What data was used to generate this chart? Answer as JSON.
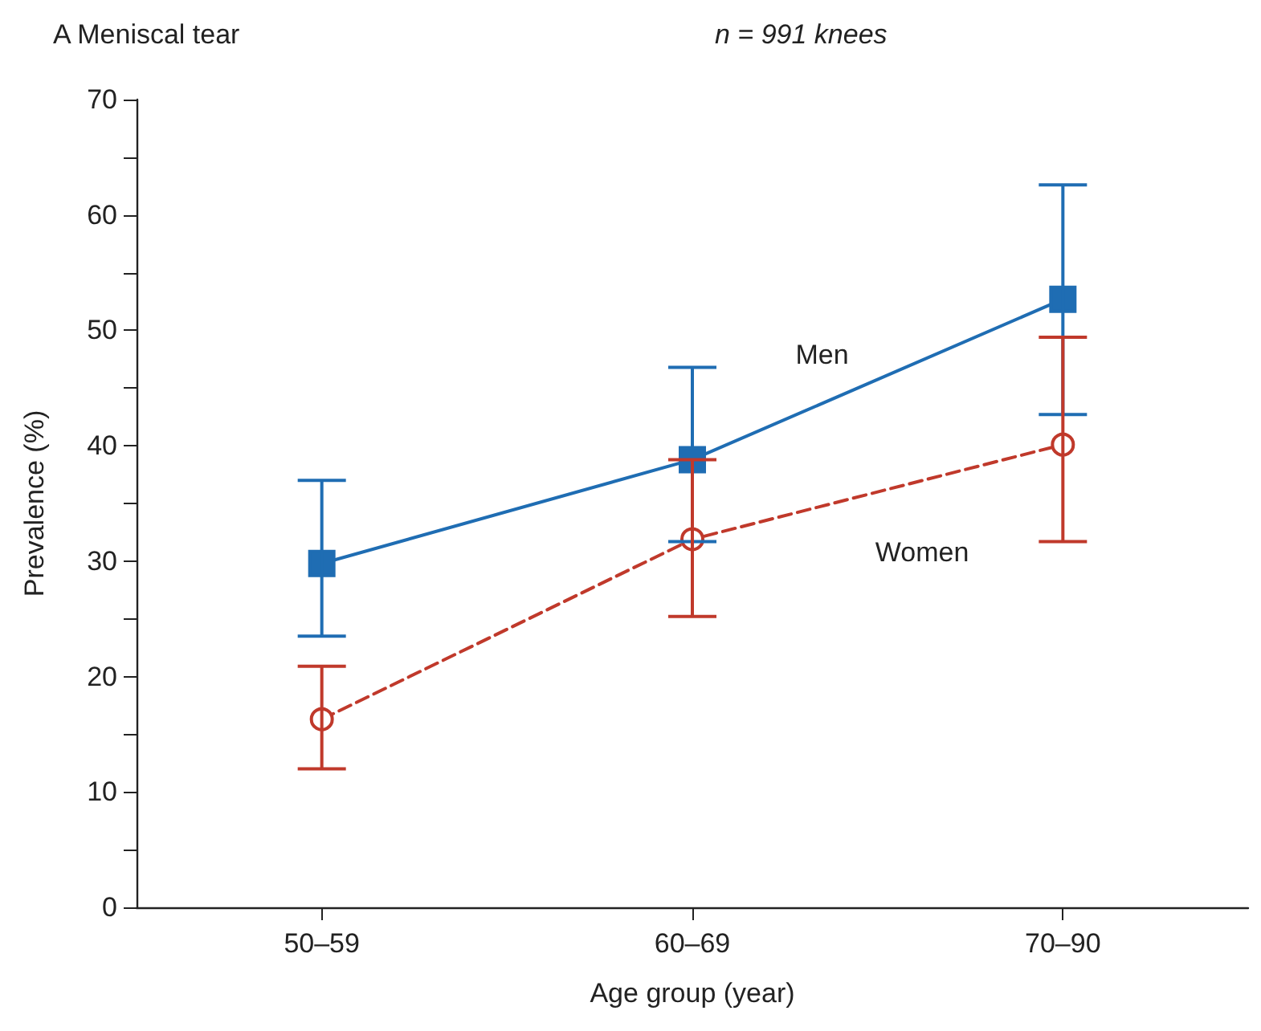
{
  "chart_data": {
    "type": "line",
    "title": "A Meniscal tear",
    "subtitle": "n = 991 knees",
    "xlabel": "Age group (year)",
    "ylabel": "Prevalence (%)",
    "categories": [
      "50–59",
      "60–69",
      "70–90"
    ],
    "series": [
      {
        "name": "Men",
        "color": "#1f6db3",
        "values": [
          29.8,
          38.8,
          52.7
        ],
        "errors": [
          [
            23.5,
            37
          ],
          [
            31.7,
            46.8
          ],
          [
            42.7,
            62.6
          ]
        ],
        "marker": "square",
        "line_style": "solid"
      },
      {
        "name": "Women",
        "color": "#c0392b",
        "values": [
          16.3,
          31.9,
          40.1
        ],
        "errors": [
          [
            12,
            20.9
          ],
          [
            25.2,
            38.8
          ],
          [
            31.7,
            49.4
          ]
        ],
        "marker": "circle",
        "line_style": "dashed"
      }
    ],
    "ylim": [
      0,
      70
    ],
    "yticks": [
      0,
      {
        "value": 5,
        "label": null
      },
      10,
      {
        "value": 15,
        "label": null
      },
      20,
      {
        "value": 25,
        "label": null
      },
      30,
      {
        "value": 35,
        "label": null
      },
      40,
      {
        "value": 45,
        "label": null
      },
      50,
      {
        "value": 55,
        "label": null
      },
      60,
      {
        "value": 65,
        "label": null
      },
      70
    ],
    "grid": false,
    "legend": false
  }
}
